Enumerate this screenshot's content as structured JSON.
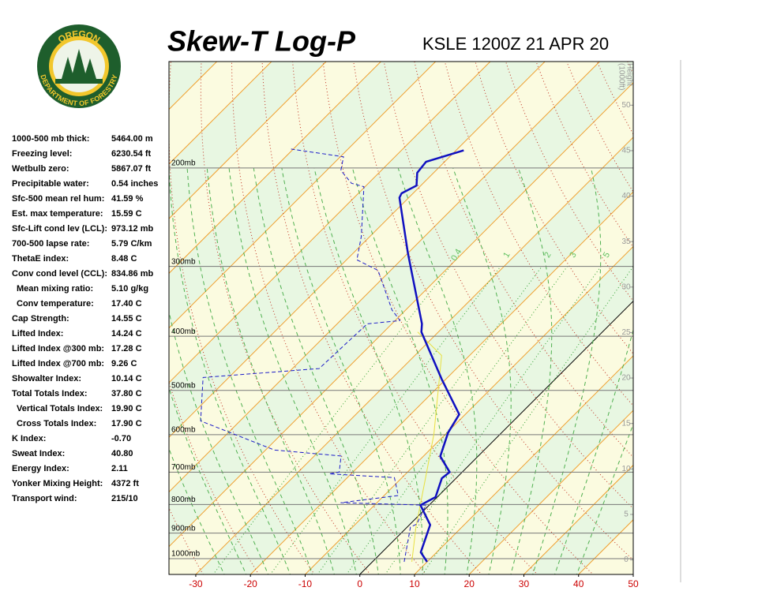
{
  "logo": {
    "top": "OREGON",
    "bottom": "DEPARTMENT OF FORESTRY"
  },
  "stats": [
    {
      "label": "1000-500 mb thick:",
      "value": "5464.00 m"
    },
    {
      "label": "Freezing level:",
      "value": "6230.54 ft"
    },
    {
      "label": "Wetbulb zero:",
      "value": "5867.07 ft"
    },
    {
      "label": "Precipitable water:",
      "value": "0.54 inches"
    },
    {
      "label": "Sfc-500 mean rel hum:",
      "value": "41.59 %"
    },
    {
      "label": "Est. max temperature:",
      "value": "15.59 C"
    },
    {
      "label": "Sfc-Lift cond lev (LCL):",
      "value": "973.12 mb"
    },
    {
      "label": "700-500 lapse rate:",
      "value": "5.79 C/km"
    },
    {
      "label": "ThetaE index:",
      "value": "8.48 C"
    },
    {
      "label": "Conv cond level (CCL):",
      "value": "834.86 mb",
      "sub": [
        {
          "label": "Mean mixing ratio:",
          "value": "5.10 g/kg"
        },
        {
          "label": "Conv temperature:",
          "value": "17.40 C"
        }
      ]
    },
    {
      "label": "Cap Strength:",
      "value": "14.55 C"
    },
    {
      "label": "Lifted Index:",
      "value": "14.24 C"
    },
    {
      "label": "Lifted Index @300 mb:",
      "value": "17.28 C"
    },
    {
      "label": "Lifted Index @700 mb:",
      "value": "9.26 C"
    },
    {
      "label": "Showalter Index:",
      "value": "10.14 C"
    },
    {
      "label": "Total Totals Index:",
      "value": "37.80 C",
      "sub": [
        {
          "label": "Vertical Totals Index:",
          "value": "19.90 C"
        },
        {
          "label": "Cross Totals Index:",
          "value": "17.90 C"
        }
      ]
    },
    {
      "label": "K Index:",
      "value": "-0.70"
    },
    {
      "label": "Sweat Index:",
      "value": "40.80"
    },
    {
      "label": "Energy Index:",
      "value": "2.11"
    },
    {
      "label": "Yonker Mixing Height:",
      "value": "4372 ft"
    },
    {
      "label": "Transport wind:",
      "value": "215/10"
    }
  ],
  "chart_data": {
    "type": "skewt",
    "title": "Skew-T Log-P",
    "subtitle": "KSLE 1200Z 21 APR 20",
    "xlim": [
      -34.9,
      50
    ],
    "xticks": [
      -30,
      -20,
      -10,
      0,
      10,
      20,
      30,
      40,
      50
    ],
    "ylim": [
      1067,
      129
    ],
    "log_y": true,
    "yticks": [
      {
        "value": 1000,
        "label": "1000mb"
      },
      {
        "value": 900,
        "label": "900mb"
      },
      {
        "value": 800,
        "label": "800mb"
      },
      {
        "value": 700,
        "label": "700mb"
      },
      {
        "value": 600,
        "label": "600mb"
      },
      {
        "value": 500,
        "label": "500mb"
      },
      {
        "value": 400,
        "label": "400mb"
      },
      {
        "value": 300,
        "label": "300mb"
      },
      {
        "value": 200,
        "label": "200mb"
      }
    ],
    "y2_label": [
      "Height",
      "(1000ft)"
    ],
    "y2lim": [
      -1.6,
      54.8
    ],
    "y2ticks": [
      0,
      5,
      10,
      15,
      20,
      25,
      30,
      35,
      40,
      45,
      50
    ],
    "mixing_ratio_labels": [
      0.4,
      1,
      2,
      3,
      5,
      8
    ],
    "series": [
      {
        "color": "#e8e040",
        "style": "solid",
        "width": 1,
        "pressure": [
          1013,
          878,
          732,
          599,
          433,
          393
        ],
        "values": [
          7.2,
          1.6,
          -4.9,
          -12.1,
          -25.1,
          -33.8
        ]
      },
      {
        "color": "#1c1cc8",
        "style": "dashed",
        "width": 1,
        "pressure": [
          1013,
          878,
          867,
          802,
          794,
          771,
          716,
          705,
          700,
          655,
          639,
          567,
          474,
          457,
          380,
          375,
          359,
          305,
          292,
          265,
          216,
          213,
          202,
          191,
          185
        ],
        "values": [
          5.8,
          0.6,
          1.2,
          -0.6,
          -16.6,
          -7.4,
          -11.4,
          -24.0,
          -22.5,
          -25.1,
          -38.4,
          -57.2,
          -64.7,
          -45.1,
          -44.5,
          -39.1,
          -42.5,
          -52.3,
          -58.1,
          -61.6,
          -70.2,
          -73.1,
          -77.4,
          -79.4,
          -90.4
        ]
      },
      {
        "color": "#1010c0",
        "style": "solid",
        "width": 2.5,
        "pressure": [
          1013,
          974,
          870,
          802,
          776,
          718,
          700,
          656,
          595,
          552,
          477,
          393,
          380,
          284,
          226,
          222,
          215,
          204,
          195,
          186
        ],
        "values": [
          10.0,
          7.1,
          3.8,
          -1.6,
          -0.3,
          -2.6,
          -2.3,
          -6.9,
          -9.8,
          -11.1,
          -20.8,
          -33.1,
          -34.5,
          -50.0,
          -61.7,
          -62.1,
          -60.8,
          -63.0,
          -63.4,
          -58.6
        ]
      }
    ]
  }
}
